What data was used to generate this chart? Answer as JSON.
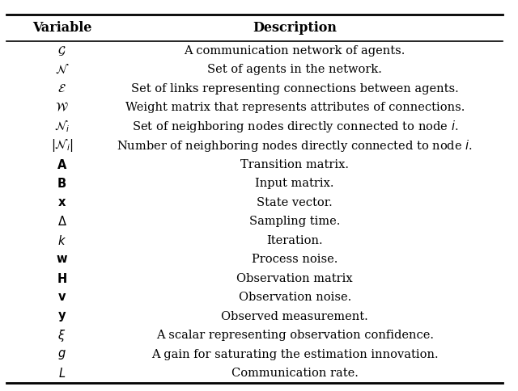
{
  "title_variable": "Variable",
  "title_description": "Description",
  "rows": [
    {
      "var": "$\\mathcal{G}$",
      "desc": "A communication network of agents."
    },
    {
      "var": "$\\mathcal{N}$",
      "desc": "Set of agents in the network."
    },
    {
      "var": "$\\mathcal{E}$",
      "desc": "Set of links representing connections between agents."
    },
    {
      "var": "$\\mathcal{W}$",
      "desc": "Weight matrix that represents attributes of connections."
    },
    {
      "var": "$\\mathcal{N}_i$",
      "desc": "Set of neighboring nodes directly connected to node $i$."
    },
    {
      "var": "$|\\mathcal{N}_i|$",
      "desc": "Number of neighboring nodes directly connected to node $i$."
    },
    {
      "var": "$\\mathbf{A}$",
      "desc": "Transition matrix."
    },
    {
      "var": "$\\mathbf{B}$",
      "desc": "Input matrix."
    },
    {
      "var": "$\\mathbf{x}$",
      "desc": "State vector."
    },
    {
      "var": "$\\Delta$",
      "desc": "Sampling time."
    },
    {
      "var": "$k$",
      "desc": "Iteration."
    },
    {
      "var": "$\\mathbf{w}$",
      "desc": "Process noise."
    },
    {
      "var": "$\\mathbf{H}$",
      "desc": "Observation matrix"
    },
    {
      "var": "$\\mathbf{v}$",
      "desc": "Observation noise."
    },
    {
      "var": "$\\mathbf{y}$",
      "desc": "Observed measurement."
    },
    {
      "var": "$\\xi$",
      "desc": "A scalar representing observation confidence."
    },
    {
      "var": "$g$",
      "desc": "A gain for saturating the estimation innovation."
    },
    {
      "var": "$L$",
      "desc": "Communication rate."
    }
  ],
  "fig_width": 6.4,
  "fig_height": 4.84,
  "dpi": 100,
  "background_color": "#ffffff",
  "text_color": "#000000",
  "font_size": 10.5,
  "header_font_size": 11.5
}
